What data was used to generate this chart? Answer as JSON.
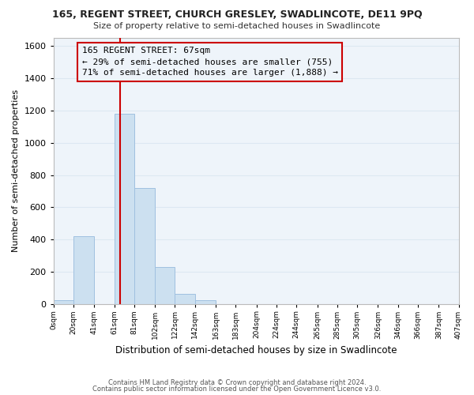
{
  "title": "165, REGENT STREET, CHURCH GRESLEY, SWADLINCOTE, DE11 9PQ",
  "subtitle": "Size of property relative to semi-detached houses in Swadlincote",
  "xlabel": "Distribution of semi-detached houses by size in Swadlincote",
  "ylabel": "Number of semi-detached properties",
  "footnote1": "Contains HM Land Registry data © Crown copyright and database right 2024.",
  "footnote2": "Contains public sector information licensed under the Open Government Licence v3.0.",
  "bar_left_edges": [
    0,
    20,
    41,
    61,
    81,
    102,
    122,
    142,
    163,
    183,
    204,
    224,
    244,
    265,
    285,
    305,
    326,
    346,
    366,
    387
  ],
  "bar_widths": [
    20,
    21,
    20,
    20,
    21,
    20,
    20,
    21,
    20,
    21,
    20,
    20,
    21,
    20,
    20,
    21,
    20,
    20,
    21,
    20
  ],
  "bar_heights": [
    25,
    420,
    0,
    1180,
    720,
    230,
    65,
    25,
    0,
    0,
    0,
    0,
    0,
    0,
    0,
    0,
    0,
    0,
    0,
    0
  ],
  "bar_color": "#cce0f0",
  "bar_edge_color": "#a0c0e0",
  "tick_labels": [
    "0sqm",
    "20sqm",
    "41sqm",
    "61sqm",
    "81sqm",
    "102sqm",
    "122sqm",
    "142sqm",
    "163sqm",
    "183sqm",
    "204sqm",
    "224sqm",
    "244sqm",
    "265sqm",
    "285sqm",
    "305sqm",
    "326sqm",
    "346sqm",
    "366sqm",
    "387sqm",
    "407sqm"
  ],
  "ylim": [
    0,
    1650
  ],
  "yticks": [
    0,
    200,
    400,
    600,
    800,
    1000,
    1200,
    1400,
    1600
  ],
  "xlim": [
    0,
    407
  ],
  "property_line_x": 67,
  "property_line_color": "#cc0000",
  "annotation_title": "165 REGENT STREET: 67sqm",
  "annotation_line1": "← 29% of semi-detached houses are smaller (755)",
  "annotation_line2": "71% of semi-detached houses are larger (1,888) →",
  "grid_color": "#dce8f2",
  "background_color": "#ffffff",
  "plot_bg_color": "#eef4fa"
}
